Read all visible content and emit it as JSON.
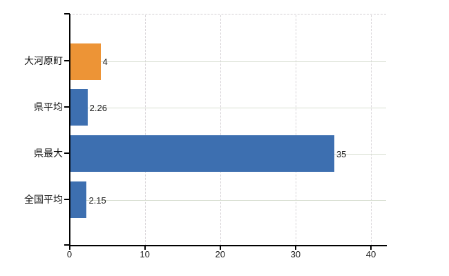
{
  "chart_data": {
    "type": "bar",
    "orientation": "horizontal",
    "title": "",
    "xlabel": "",
    "ylabel": "",
    "categories": [
      "大河原町",
      "県平均",
      "県最大",
      "全国平均"
    ],
    "values": [
      4,
      2.26,
      35,
      2.15
    ],
    "value_labels": [
      "4",
      "2.26",
      "35",
      "2.15"
    ],
    "series": [
      {
        "name": "values",
        "values": [
          4,
          2.26,
          35,
          2.15
        ],
        "colors": [
          "#ED9436",
          "#3D6FB0",
          "#3D6FB0",
          "#3D6FB0"
        ]
      }
    ],
    "x_ticks": [
      0,
      10,
      20,
      30,
      40
    ],
    "x_tick_labels": [
      "0",
      "10",
      "20",
      "30",
      "40"
    ],
    "xlim": [
      0,
      42
    ],
    "grid": {
      "vertical": "dashed",
      "horizontal": "solid",
      "top_border": "dashed"
    },
    "legend": "none"
  },
  "colors": {
    "highlight_bar": "#ED9436",
    "default_bar": "#3D6FB0",
    "axis": "#000000",
    "grid_horizontal": "#D8DED1",
    "grid_vertical": "#D6D2D6",
    "text": "#1B1B1B",
    "background": "#FFFFFF"
  }
}
